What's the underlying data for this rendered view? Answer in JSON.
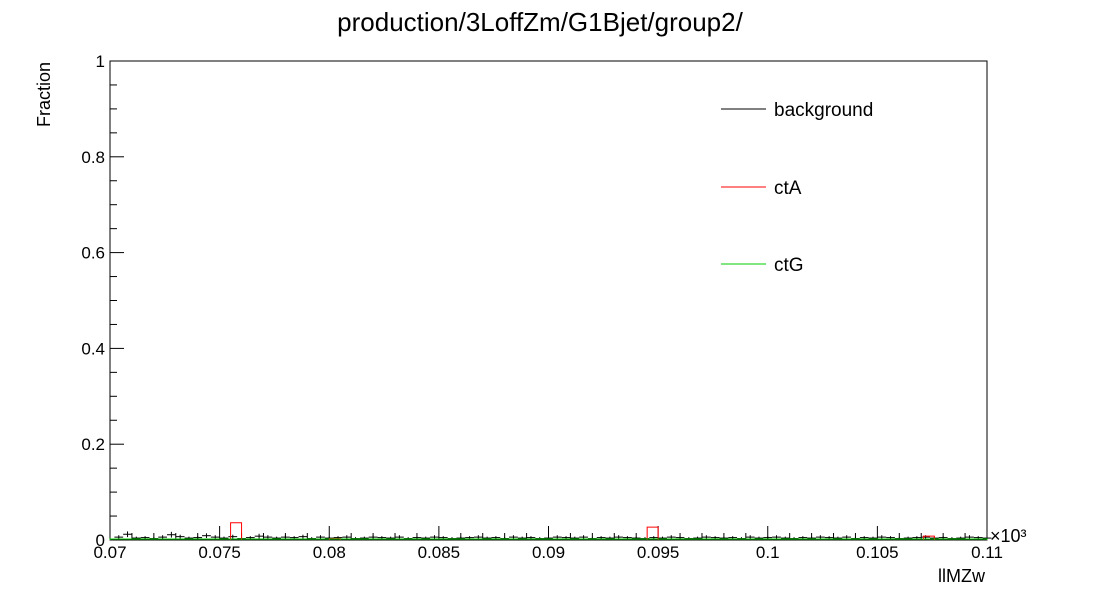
{
  "chart_data": {
    "type": "histogram",
    "title": "production/3LoffZm/G1Bjet/group2/",
    "xlabel": "llMZw",
    "ylabel": "Fraction",
    "x_multiplier_label": "×10³",
    "xlim": [
      0.07,
      0.11
    ],
    "ylim": [
      0,
      1
    ],
    "x_ticks": [
      0.07,
      0.075,
      0.08,
      0.085,
      0.09,
      0.095,
      0.1,
      0.105,
      0.11
    ],
    "x_tick_labels": [
      "0.07",
      "0.075",
      "0.08",
      "0.085",
      "0.09",
      "0.095",
      "0.1",
      "0.105",
      "0.11"
    ],
    "y_ticks": [
      0,
      0.2,
      0.4,
      0.6,
      0.8,
      1
    ],
    "y_tick_labels": [
      "0",
      "0.2",
      "0.4",
      "0.6",
      "0.8",
      "1"
    ],
    "legend_position": "top-right",
    "bin_width": 0.0004,
    "series": [
      {
        "name": "background",
        "color": "#000000",
        "style": "errorbar",
        "x_start": 0.0702,
        "values": [
          0.006,
          0.012,
          0.004,
          0.005,
          0.003,
          0.006,
          0.011,
          0.007,
          0.004,
          0.005,
          0.009,
          0.006,
          0.004,
          0.007,
          0.003,
          0.005,
          0.008,
          0.006,
          0.004,
          0.006,
          0.005,
          0.007,
          0.003,
          0.006,
          0.004,
          0.005,
          0.006,
          0.003,
          0.004,
          0.006,
          0.005,
          0.004,
          0.006,
          0.003,
          0.005,
          0.004,
          0.006,
          0.005,
          0.003,
          0.004,
          0.005,
          0.006,
          0.004,
          0.005,
          0.003,
          0.006,
          0.004,
          0.005,
          0.003,
          0.004,
          0.006,
          0.005,
          0.004,
          0.006,
          0.003,
          0.005,
          0.004,
          0.006,
          0.005,
          0.004,
          0.003,
          0.005,
          0.004,
          0.006,
          0.005,
          0.003,
          0.004,
          0.006,
          0.005,
          0.004,
          0.005,
          0.003,
          0.006,
          0.004,
          0.005,
          0.006,
          0.004,
          0.003,
          0.005,
          0.004,
          0.006,
          0.005,
          0.004,
          0.006,
          0.003,
          0.005,
          0.004,
          0.006,
          0.005,
          0.003,
          0.004,
          0.005,
          0.006,
          0.004,
          0.005,
          0.003,
          0.004,
          0.006,
          0.005,
          0.004
        ],
        "errors": [
          0.004,
          0.006,
          0.003,
          0.003,
          0.003,
          0.004,
          0.006,
          0.004,
          0.003,
          0.003,
          0.005,
          0.004,
          0.003,
          0.004,
          0.003,
          0.003,
          0.005,
          0.004,
          0.003,
          0.004,
          0.003,
          0.004,
          0.003,
          0.004,
          0.003,
          0.003,
          0.004,
          0.003,
          0.003,
          0.004,
          0.003,
          0.003,
          0.004,
          0.003,
          0.003,
          0.003,
          0.004,
          0.003,
          0.003,
          0.003,
          0.003,
          0.004,
          0.003,
          0.003,
          0.003,
          0.004,
          0.003,
          0.003,
          0.003,
          0.003,
          0.004,
          0.003,
          0.003,
          0.004,
          0.003,
          0.003,
          0.003,
          0.004,
          0.003,
          0.003,
          0.003,
          0.003,
          0.003,
          0.004,
          0.003,
          0.003,
          0.003,
          0.004,
          0.003,
          0.003,
          0.003,
          0.003,
          0.004,
          0.003,
          0.003,
          0.004,
          0.003,
          0.003,
          0.003,
          0.003,
          0.004,
          0.003,
          0.003,
          0.004,
          0.003,
          0.003,
          0.003,
          0.004,
          0.003,
          0.003,
          0.003,
          0.003,
          0.004,
          0.003,
          0.003,
          0.003,
          0.003,
          0.004,
          0.003,
          0.003
        ]
      },
      {
        "name": "ctA",
        "color": "#ff0000",
        "style": "step",
        "bins": [
          {
            "x0": 0.0755,
            "x1": 0.076,
            "value": 0.036
          },
          {
            "x0": 0.08,
            "x1": 0.0805,
            "value": 0.003
          },
          {
            "x0": 0.0945,
            "x1": 0.095,
            "value": 0.027
          },
          {
            "x0": 0.1071,
            "x1": 0.1076,
            "value": 0.008
          }
        ]
      },
      {
        "name": "ctG",
        "color": "#00cc00",
        "style": "step",
        "bins": [
          {
            "x0": 0.07,
            "x1": 0.11,
            "value": 0.002
          }
        ]
      }
    ]
  }
}
